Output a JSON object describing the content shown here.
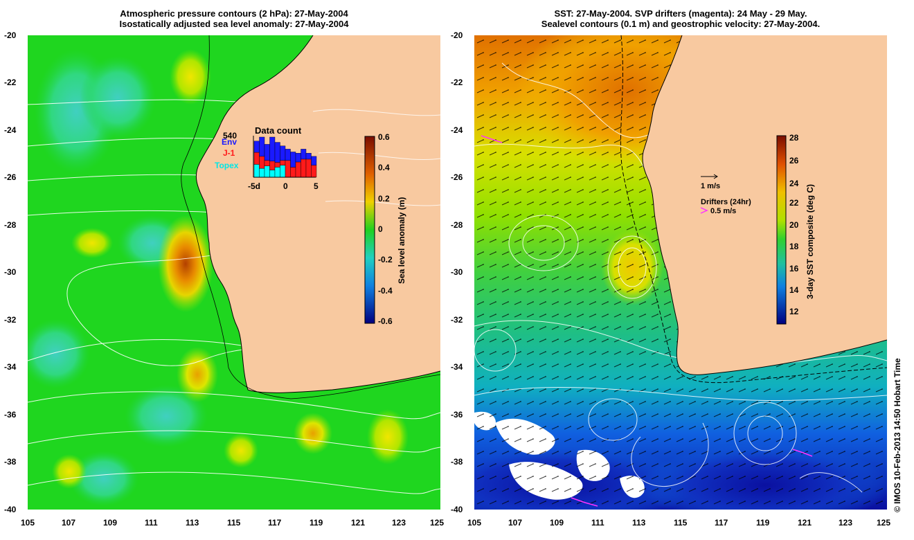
{
  "left_panel": {
    "title_line1": "Atmospheric pressure contours (2 hPa): 27-May-2004",
    "title_line2": "Isostatically adjusted sea level anomaly: 27-May-2004",
    "y_ticks": [
      "-20",
      "-22",
      "-24",
      "-26",
      "-28",
      "-30",
      "-32",
      "-34",
      "-36",
      "-38",
      "-40"
    ],
    "x_ticks": [
      "105",
      "107",
      "109",
      "111",
      "113",
      "115",
      "117",
      "119",
      "121",
      "123",
      "125"
    ],
    "colorbar": {
      "label": "Sea level anomaly (m)",
      "ticks": [
        "0.6",
        "0.4",
        "0.2",
        "0",
        "-0.2",
        "-0.4",
        "-0.6"
      ]
    },
    "data_count": {
      "title": "Data count",
      "max_value": "540",
      "legend": [
        "Env",
        "J-1",
        "Topex"
      ],
      "x_ticks": [
        "-5d",
        "0",
        "5"
      ],
      "series": {
        "topex": [
          0.32,
          0.22,
          0.28,
          0.18,
          0.25,
          0.3,
          0.0,
          0.0,
          0.0,
          0.0,
          0.0,
          0.0
        ],
        "j1": [
          0.3,
          0.3,
          0.14,
          0.22,
          0.12,
          0.12,
          0.42,
          0.25,
          0.38,
          0.45,
          0.45,
          0.3
        ],
        "env": [
          0.28,
          0.48,
          0.4,
          0.6,
          0.5,
          0.36,
          0.28,
          0.38,
          0.22,
          0.25,
          0.15,
          0.22
        ]
      },
      "colors": {
        "env": "#1a1aff",
        "j1": "#ff1a1a",
        "topex": "#00ffff"
      }
    }
  },
  "right_panel": {
    "title_line1": "SST: 27-May-2004. SVP drifters (magenta): 24 May - 29 May.",
    "title_line2": "Sealevel contours (0.1 m) and geostrophic velocity: 27-May-2004.",
    "y_ticks": [
      "-20",
      "-22",
      "-24",
      "-26",
      "-28",
      "-30",
      "-32",
      "-34",
      "-36",
      "-38",
      "-40"
    ],
    "x_ticks": [
      "105",
      "107",
      "109",
      "111",
      "113",
      "115",
      "117",
      "119",
      "121",
      "123",
      "125"
    ],
    "colorbar": {
      "label": "3-day SST composite (deg C)",
      "ticks": [
        "28",
        "26",
        "24",
        "22",
        "20",
        "18",
        "16",
        "14",
        "12"
      ]
    },
    "legend": {
      "velocity": "1 m/s",
      "drifters_title": "Drifters (24hr)",
      "drifters_scale": "0.5 m/s"
    }
  },
  "credit": "© IMOS 10-Feb-2013 14:50 Hobart Time",
  "colors": {
    "land": "#f8c9a0",
    "ocean_left": "#1fd61f",
    "drifter": "#ff33ff"
  }
}
